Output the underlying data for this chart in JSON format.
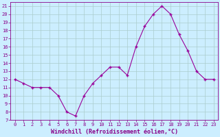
{
  "x": [
    0,
    1,
    2,
    3,
    4,
    5,
    6,
    7,
    8,
    9,
    10,
    11,
    12,
    13,
    14,
    15,
    16,
    17,
    18,
    19,
    20,
    21,
    22,
    23
  ],
  "y": [
    12,
    11.5,
    11,
    11,
    11,
    10,
    8,
    7.5,
    10,
    11.5,
    12.5,
    13.5,
    13.5,
    12.5,
    16,
    18.5,
    20,
    21,
    20,
    17.5,
    15.5,
    13,
    12,
    12
  ],
  "line_color": "#990099",
  "marker_color": "#990099",
  "bg_color": "#cceeff",
  "grid_color": "#aacccc",
  "xlabel": "Windchill (Refroidissement éolien,°C)",
  "xlim": [
    -0.5,
    23.5
  ],
  "ylim": [
    7,
    21.5
  ],
  "yticks": [
    7,
    8,
    9,
    10,
    11,
    12,
    13,
    14,
    15,
    16,
    17,
    18,
    19,
    20,
    21
  ],
  "xticks": [
    0,
    1,
    2,
    3,
    4,
    5,
    6,
    7,
    8,
    9,
    10,
    11,
    12,
    13,
    14,
    15,
    16,
    17,
    18,
    19,
    20,
    21,
    22,
    23
  ],
  "font_color": "#880088",
  "tick_fontsize": 5,
  "label_fontsize": 6
}
